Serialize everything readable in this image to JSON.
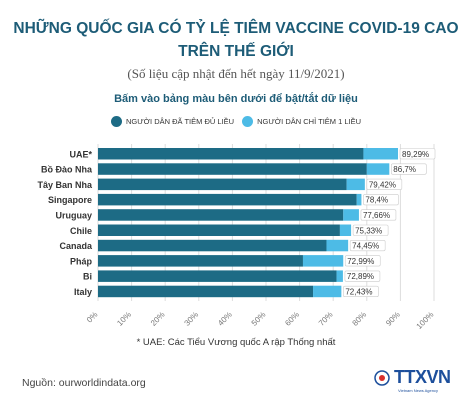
{
  "title_line1": "NHỮNG QUỐC GIA CÓ TỶ LỆ TIÊM VACCINE COVID-19 CAO",
  "title_line2": "TRÊN THẾ GIỚI",
  "subtitle": "(Số liệu cập nhật đến hết ngày 11/9/2021)",
  "instruction": "Bấm vào bảng màu bên dưới để bật/tắt dữ liệu",
  "note": "* UAE: Các Tiểu Vương quốc A rập Thống nhất",
  "source": "Nguồn: ourworldindata.org",
  "logo": {
    "text": "TTXVN",
    "subtext": "Vietnam News Agency"
  },
  "colors": {
    "full": "#1d6b85",
    "one": "#4dbbe6",
    "grid": "#dddddd"
  },
  "chart_data": {
    "type": "bar",
    "orientation": "horizontal",
    "stacked": true,
    "categories": [
      "UAE*",
      "Bồ Đào Nha",
      "Tây Ban Nha",
      "Singapore",
      "Uruguay",
      "Chile",
      "Canada",
      "Pháp",
      "Bỉ",
      "Italy"
    ],
    "series": [
      {
        "name": "NGƯỜI DÂN ĐÃ TIÊM ĐỦ LIỀU",
        "color": "#1d6b85",
        "values": [
          79.0,
          80.0,
          74.0,
          77.0,
          73.0,
          72.0,
          68.0,
          61.0,
          71.0,
          64.0
        ]
      },
      {
        "name": "NGƯỜI DÂN CHỈ TIÊM 1 LIỀU",
        "color": "#4dbbe6",
        "values": [
          10.29,
          6.7,
          5.42,
          1.4,
          4.66,
          3.33,
          6.45,
          11.99,
          1.89,
          8.43
        ]
      }
    ],
    "totals": [
      "89,29%",
      "86,7%",
      "79,42%",
      "78,4%",
      "77,66%",
      "75,33%",
      "74,45%",
      "72,99%",
      "72,89%",
      "72,43%"
    ],
    "x_ticks": [
      "0%",
      "10%",
      "20%",
      "30%",
      "40%",
      "50%",
      "60%",
      "70%",
      "80%",
      "90%",
      "100%"
    ],
    "xlim": [
      0,
      100
    ],
    "grid": true,
    "legend_position": "top"
  }
}
